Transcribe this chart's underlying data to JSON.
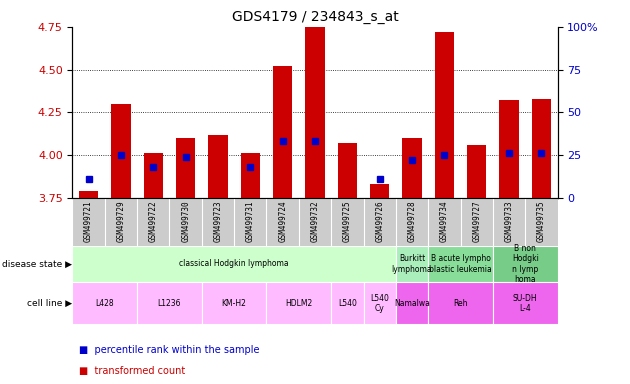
{
  "title": "GDS4179 / 234843_s_at",
  "samples": [
    "GSM499721",
    "GSM499729",
    "GSM499722",
    "GSM499730",
    "GSM499723",
    "GSM499731",
    "GSM499724",
    "GSM499732",
    "GSM499725",
    "GSM499726",
    "GSM499728",
    "GSM499734",
    "GSM499727",
    "GSM499733",
    "GSM499735"
  ],
  "red_values": [
    3.79,
    4.3,
    4.01,
    4.1,
    4.12,
    4.01,
    4.52,
    4.75,
    4.07,
    3.83,
    4.1,
    4.72,
    4.06,
    4.32,
    4.33
  ],
  "blue_values": [
    3.86,
    4.0,
    3.93,
    3.99,
    null,
    3.93,
    4.08,
    4.08,
    null,
    3.86,
    3.97,
    4.0,
    null,
    4.01,
    4.01
  ],
  "ylim_left": [
    3.75,
    4.75
  ],
  "ylim_right": [
    0,
    100
  ],
  "yticks_left": [
    3.75,
    4.0,
    4.25,
    4.5,
    4.75
  ],
  "yticks_right": [
    0,
    25,
    50,
    75,
    100
  ],
  "left_color": "#cc0000",
  "right_color": "#0000cc",
  "blue_dot_color": "#0000cc",
  "red_bar_color": "#cc0000",
  "bar_bottom": 3.75,
  "plot_bg": "#ffffff",
  "tick_bg": "#cccccc",
  "disease_blocks": [
    {
      "label": "classical Hodgkin lymphoma",
      "start": 0,
      "end": 10,
      "color": "#ccffcc"
    },
    {
      "label": "Burkitt\nlymphoma",
      "start": 10,
      "end": 11,
      "color": "#aaeebb"
    },
    {
      "label": "B acute lympho\nblastic leukemia",
      "start": 11,
      "end": 13,
      "color": "#88dd99"
    },
    {
      "label": "B non\nHodgki\nn lymp\nhoma",
      "start": 13,
      "end": 15,
      "color": "#77cc88"
    }
  ],
  "cell_blocks": [
    {
      "label": "L428",
      "start": 0,
      "end": 2,
      "color": "#ffbbff"
    },
    {
      "label": "L1236",
      "start": 2,
      "end": 4,
      "color": "#ffbbff"
    },
    {
      "label": "KM-H2",
      "start": 4,
      "end": 6,
      "color": "#ffbbff"
    },
    {
      "label": "HDLM2",
      "start": 6,
      "end": 8,
      "color": "#ffbbff"
    },
    {
      "label": "L540",
      "start": 8,
      "end": 9,
      "color": "#ffbbff"
    },
    {
      "label": "L540\nCy",
      "start": 9,
      "end": 10,
      "color": "#ffbbff"
    },
    {
      "label": "Namalwa",
      "start": 10,
      "end": 11,
      "color": "#ee66ee"
    },
    {
      "label": "Reh",
      "start": 11,
      "end": 13,
      "color": "#ee66ee"
    },
    {
      "label": "SU-DH\nL-4",
      "start": 13,
      "end": 15,
      "color": "#ee66ee"
    }
  ],
  "legend_items": [
    {
      "label": "transformed count",
      "color": "#cc0000"
    },
    {
      "label": "percentile rank within the sample",
      "color": "#0000cc"
    }
  ]
}
